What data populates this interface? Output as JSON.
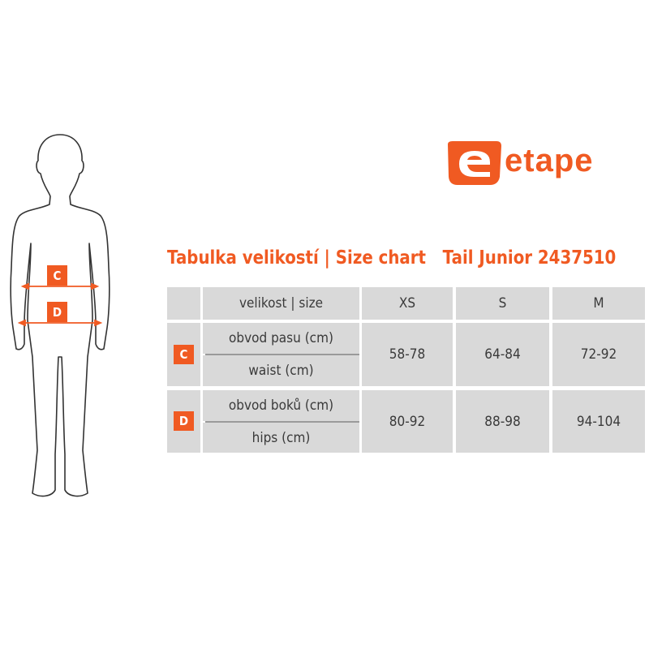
{
  "brand": {
    "name": "etape",
    "color": "#f05a22"
  },
  "title": "Tabulka velikostí | Size chart   Tail Junior 2437510",
  "figure": {
    "markers": [
      "C",
      "D"
    ]
  },
  "table": {
    "header_label": "velikost | size",
    "sizes": [
      "XS",
      "S",
      "M"
    ],
    "rows": [
      {
        "marker": "C",
        "label_cz": "obvod pasu (cm)",
        "label_en": "waist (cm)",
        "values": [
          "58-78",
          "64-84",
          "72-92"
        ]
      },
      {
        "marker": "D",
        "label_cz": "obvod boků (cm)",
        "label_en": "hips (cm)",
        "values": [
          "80-92",
          "88-98",
          "94-104"
        ]
      }
    ]
  }
}
